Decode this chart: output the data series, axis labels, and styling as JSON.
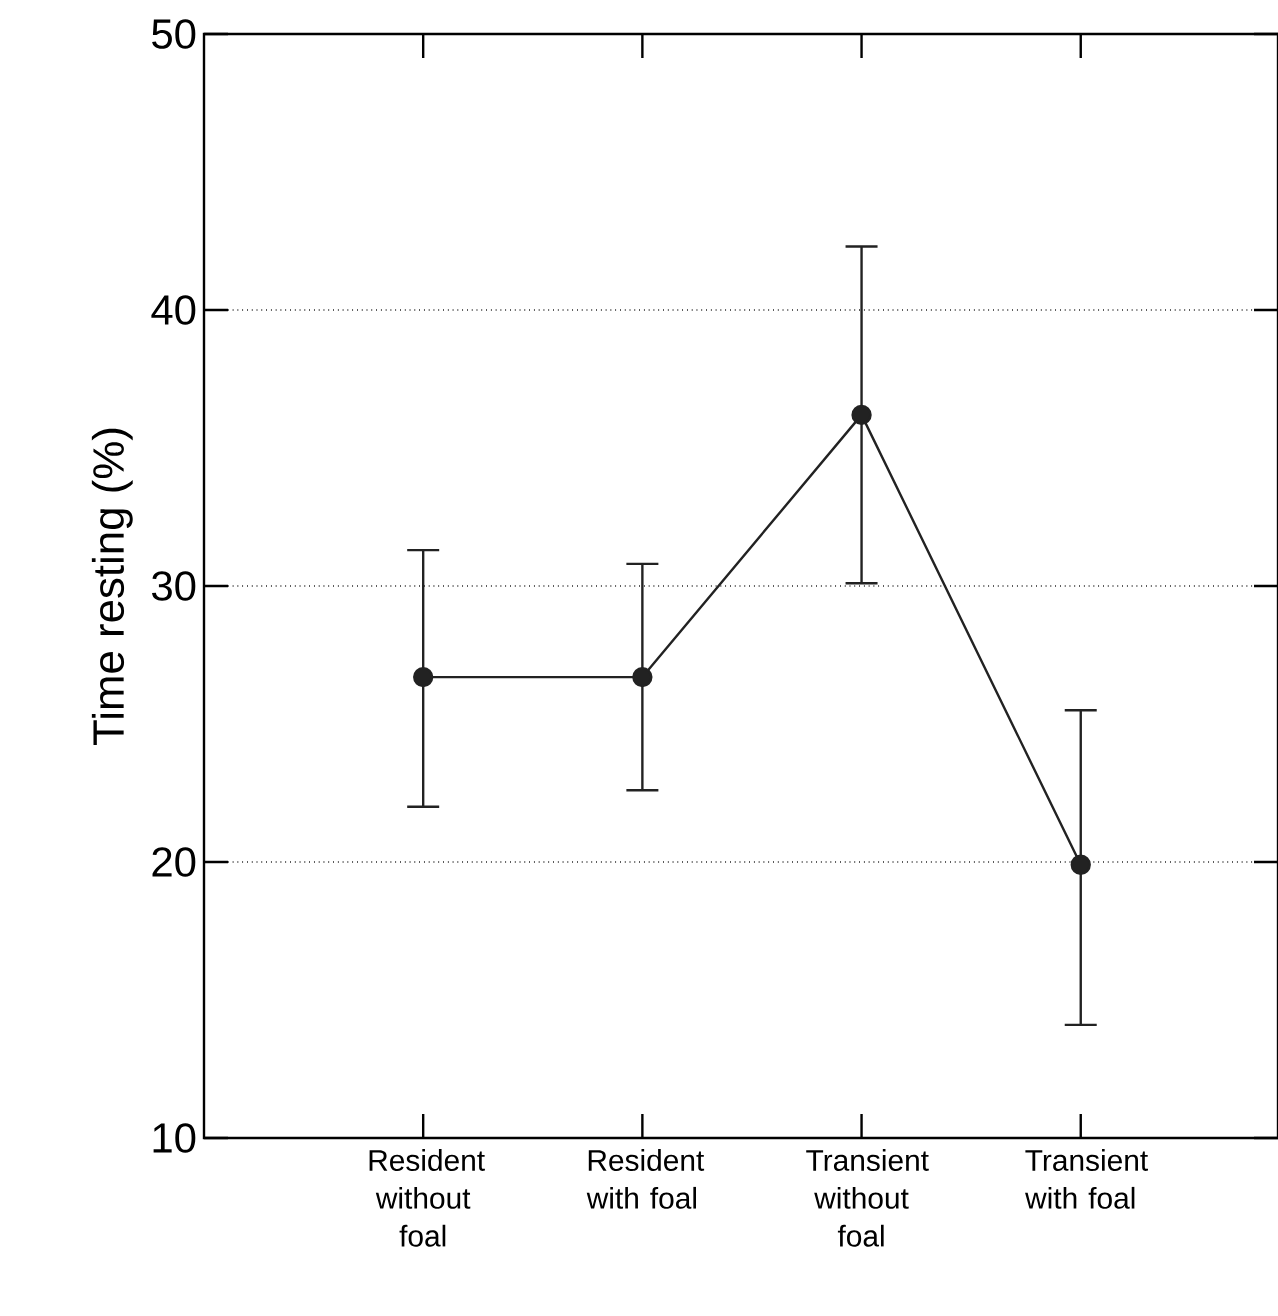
{
  "chart_data": {
    "type": "line",
    "ylabel": "Time resting (%)",
    "categories": [
      "Resident without foal",
      "Resident with foal",
      "Transient without foal",
      "Transient with foal"
    ],
    "series": [
      {
        "color": "#222222",
        "values": [
          26.7,
          26.7,
          36.2,
          19.9
        ],
        "errors": [
          [
            22.0,
            31.3
          ],
          [
            22.6,
            30.8
          ],
          [
            30.1,
            42.3
          ],
          [
            14.1,
            25.5
          ]
        ]
      }
    ],
    "ylim": [
      10,
      50
    ],
    "yticks": [
      10,
      20,
      30,
      40,
      50
    ],
    "grid": "y",
    "marker": "circle",
    "line_style": "solid"
  }
}
